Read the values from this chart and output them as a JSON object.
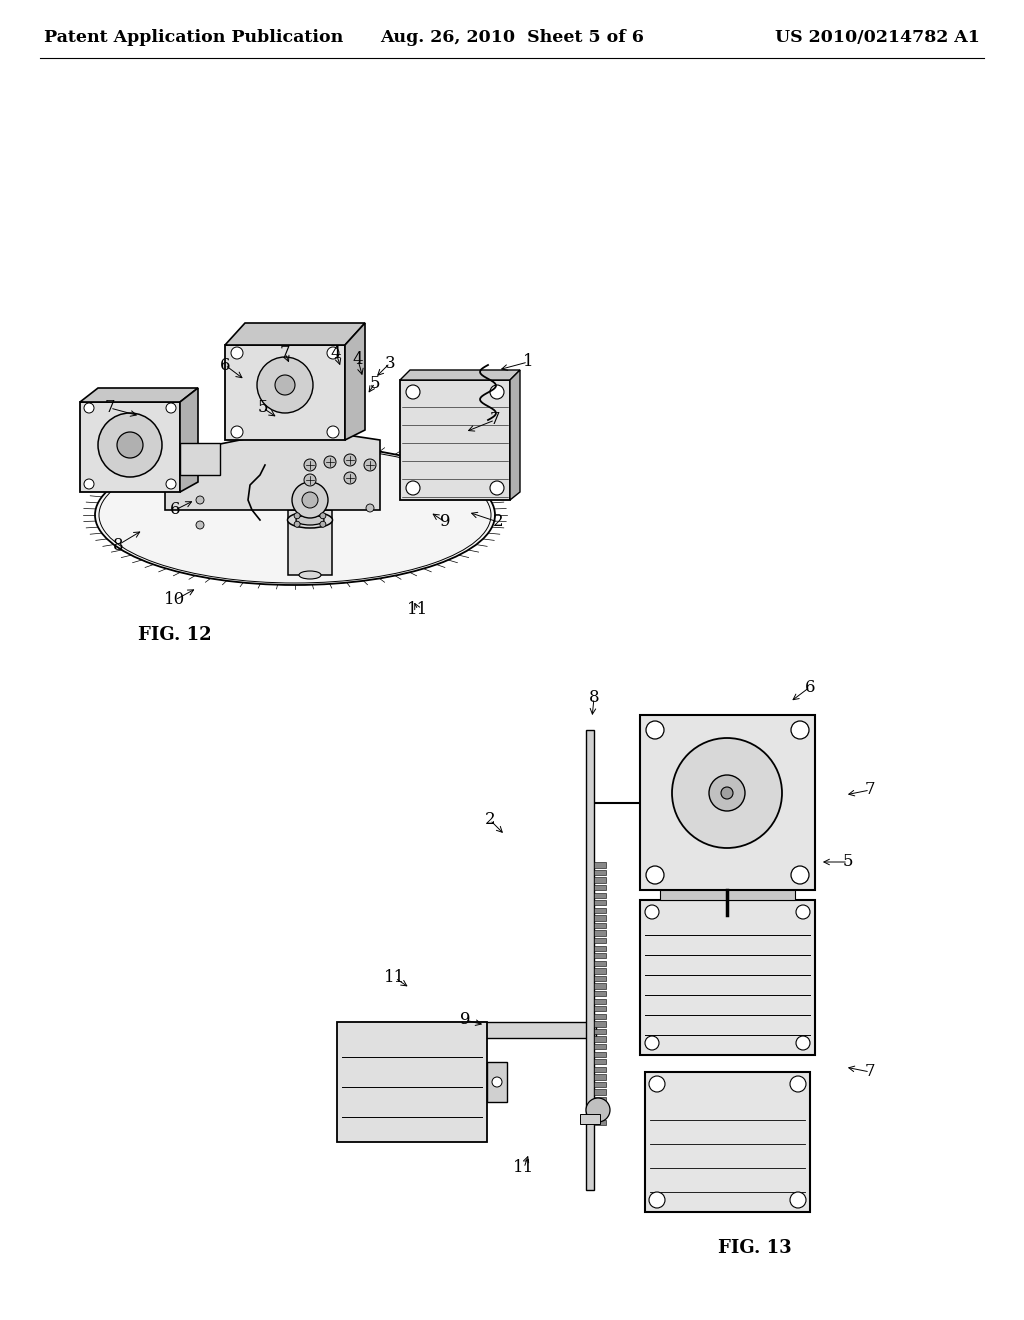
{
  "background_color": "#ffffff",
  "header_left": "Patent Application Publication",
  "header_center": "Aug. 26, 2010  Sheet 5 of 6",
  "header_right": "US 2010/0214782 A1",
  "header_fontsize": 12.5,
  "fig12_label": "FIG. 12",
  "fig13_label": "FIG. 13",
  "annotation_fontsize": 12,
  "label_fontsize": 13
}
